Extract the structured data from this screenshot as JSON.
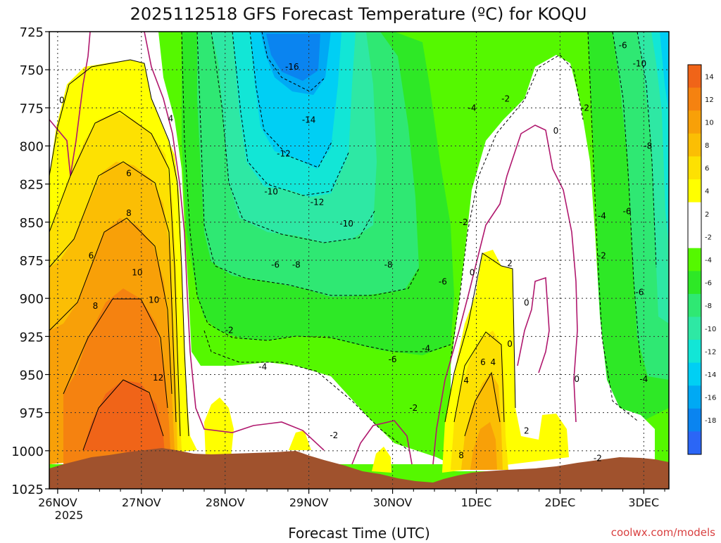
{
  "chart_data": {
    "type": "heatmap",
    "title": "2025112518 GFS Forecast Temperature (ºC) for KOQU",
    "xlabel": "Forecast Time (UTC)",
    "ylabel": "",
    "credit": "coolwx.com/models",
    "y_ticks": [
      "725",
      "750",
      "775",
      "800",
      "825",
      "850",
      "875",
      "900",
      "925",
      "950",
      "975",
      "1000",
      "1025"
    ],
    "y_range": [
      725,
      1025
    ],
    "x_ticks": [
      "26NOV",
      "27NOV",
      "28NOV",
      "29NOV",
      "30NOV",
      "1DEC",
      "2DEC",
      "3DEC"
    ],
    "x_subtick_label": "2025",
    "x_range_days": [
      -0.1,
      7.3
    ],
    "colorbar": {
      "labels": [
        "14",
        "12",
        "10",
        "8",
        "6",
        "4",
        "2",
        "-2",
        "-4",
        "-6",
        "-8",
        "-10",
        "-12",
        "-14",
        "-16",
        "-18"
      ],
      "colors": [
        "#f06418",
        "#f58210",
        "#f8a008",
        "#fbbe04",
        "#fde102",
        "#ffff00",
        "#ffffff",
        "#ffffff",
        "#55f800",
        "#2ee826",
        "#2fe873",
        "#2ee8a4",
        "#12e6d6",
        "#00cff4",
        "#00a9f4",
        "#0a84f0",
        "#2b66f6"
      ]
    },
    "contour_labels": [
      {
        "text": "0",
        "day": 0.05,
        "p": 770
      },
      {
        "text": "-16",
        "day": 2.8,
        "p": 748
      },
      {
        "text": "-14",
        "day": 3.0,
        "p": 783
      },
      {
        "text": "-12",
        "day": 2.7,
        "p": 805
      },
      {
        "text": "-12",
        "day": 3.1,
        "p": 837
      },
      {
        "text": "-10",
        "day": 2.55,
        "p": 830
      },
      {
        "text": "-10",
        "day": 3.45,
        "p": 851
      },
      {
        "text": "-8",
        "day": 2.85,
        "p": 878
      },
      {
        "text": "-8",
        "day": 3.95,
        "p": 878
      },
      {
        "text": "-6",
        "day": 2.6,
        "p": 878
      },
      {
        "text": "-6",
        "day": 4.6,
        "p": 889
      },
      {
        "text": "-6",
        "day": 4.0,
        "p": 940
      },
      {
        "text": "-4",
        "day": 2.45,
        "p": 945
      },
      {
        "text": "-4",
        "day": 4.4,
        "p": 933
      },
      {
        "text": "-4",
        "day": 4.95,
        "p": 775
      },
      {
        "text": "-2",
        "day": 2.05,
        "p": 921
      },
      {
        "text": "-2",
        "day": 3.3,
        "p": 990
      },
      {
        "text": "-2",
        "day": 4.25,
        "p": 972
      },
      {
        "text": "-2",
        "day": 4.85,
        "p": 850
      },
      {
        "text": "-2",
        "day": 5.35,
        "p": 769
      },
      {
        "text": "-2",
        "day": 6.3,
        "p": 775
      },
      {
        "text": "-2",
        "day": 6.45,
        "p": 1005
      },
      {
        "text": "-2",
        "day": 6.5,
        "p": 872
      },
      {
        "text": "-4",
        "day": 6.5,
        "p": 846
      },
      {
        "text": "-4",
        "day": 7.0,
        "p": 953
      },
      {
        "text": "-6",
        "day": 6.75,
        "p": 734
      },
      {
        "text": "-6",
        "day": 6.8,
        "p": 843
      },
      {
        "text": "-6",
        "day": 6.95,
        "p": 896
      },
      {
        "text": "-8",
        "day": 7.05,
        "p": 800
      },
      {
        "text": "-10",
        "day": 6.95,
        "p": 746
      },
      {
        "text": "4",
        "day": 1.35,
        "p": 782
      },
      {
        "text": "6",
        "day": 0.85,
        "p": 818
      },
      {
        "text": "8",
        "day": 0.85,
        "p": 844
      },
      {
        "text": "6",
        "day": 0.4,
        "p": 872
      },
      {
        "text": "10",
        "day": 0.95,
        "p": 883
      },
      {
        "text": "8",
        "day": 0.45,
        "p": 905
      },
      {
        "text": "10",
        "day": 1.15,
        "p": 901
      },
      {
        "text": "12",
        "day": 1.2,
        "p": 952
      },
      {
        "text": "0",
        "day": 4.95,
        "p": 883
      },
      {
        "text": "2",
        "day": 5.4,
        "p": 877
      },
      {
        "text": "4",
        "day": 4.88,
        "p": 954
      },
      {
        "text": "6",
        "day": 5.08,
        "p": 942
      },
      {
        "text": "4",
        "day": 5.2,
        "p": 942
      },
      {
        "text": "8",
        "day": 4.82,
        "p": 1003
      },
      {
        "text": "2",
        "day": 5.6,
        "p": 987
      },
      {
        "text": "0",
        "day": 5.6,
        "p": 903
      },
      {
        "text": "0",
        "day": 5.4,
        "p": 930
      },
      {
        "text": "0",
        "day": 5.95,
        "p": 790
      },
      {
        "text": "0",
        "day": 6.2,
        "p": 953
      }
    ]
  }
}
